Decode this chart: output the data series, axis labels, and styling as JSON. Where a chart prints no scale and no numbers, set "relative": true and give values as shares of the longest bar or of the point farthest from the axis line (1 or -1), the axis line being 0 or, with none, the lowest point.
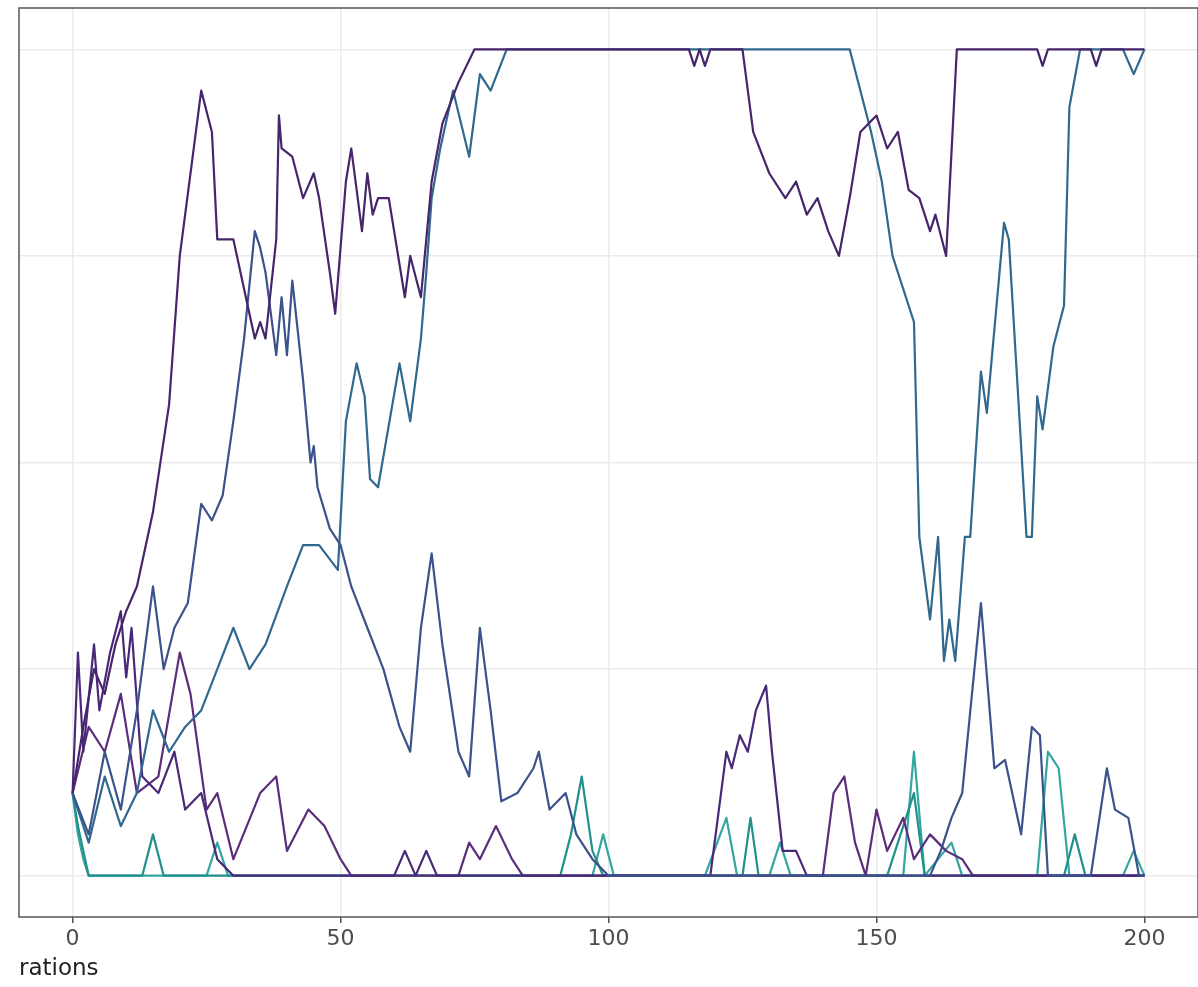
{
  "chart_data": {
    "type": "line",
    "xlabel": "rations",
    "relative": true,
    "xlim": [
      -10,
      210
    ],
    "xticks": [
      0,
      50,
      100,
      150,
      200
    ],
    "grid": true,
    "tick_labels": "x",
    "legend": false,
    "marker": "none",
    "line_style": "solid",
    "series": [
      {
        "color": "#46256b",
        "x": [
          0,
          2,
          4,
          6,
          8,
          10,
          12,
          15,
          18,
          20,
          22,
          24,
          26,
          27,
          30,
          31,
          34,
          35,
          36,
          38,
          38.5,
          39,
          41,
          43,
          45,
          46,
          48,
          49,
          51,
          52,
          54,
          55,
          56,
          57,
          59,
          62,
          63,
          65,
          67,
          69,
          72,
          75,
          115,
          116,
          117,
          118,
          119,
          125,
          127,
          130,
          133,
          135,
          137,
          139,
          141,
          143,
          145,
          147,
          150,
          152,
          154,
          156,
          158,
          160,
          161,
          163,
          165,
          175,
          180,
          181,
          182,
          190,
          191,
          192,
          200
        ],
        "values": [
          0.1,
          0.18,
          0.25,
          0.22,
          0.28,
          0.32,
          0.35,
          0.44,
          0.57,
          0.75,
          0.85,
          0.95,
          0.9,
          0.77,
          0.77,
          0.74,
          0.65,
          0.67,
          0.65,
          0.77,
          0.92,
          0.88,
          0.87,
          0.82,
          0.85,
          0.82,
          0.73,
          0.68,
          0.84,
          0.88,
          0.78,
          0.85,
          0.8,
          0.82,
          0.82,
          0.7,
          0.75,
          0.7,
          0.84,
          0.91,
          0.96,
          1,
          1,
          0.98,
          1,
          0.98,
          1,
          1,
          0.9,
          0.85,
          0.82,
          0.84,
          0.8,
          0.82,
          0.78,
          0.75,
          0.82,
          0.9,
          0.92,
          0.88,
          0.9,
          0.83,
          0.82,
          0.78,
          0.8,
          0.75,
          1,
          1,
          1,
          0.98,
          1,
          1,
          0.98,
          1,
          1
        ]
      },
      {
        "color": "#3b528b",
        "x": [
          0,
          3,
          6,
          9,
          12,
          15,
          17,
          19,
          21.5,
          24,
          26,
          28,
          30,
          32,
          34,
          35,
          36,
          38,
          39,
          40,
          41,
          43,
          44.4,
          45,
          45.7,
          48,
          50,
          52,
          55,
          58,
          61,
          63,
          65,
          67,
          69,
          72,
          74,
          76,
          78,
          80,
          83,
          86,
          87,
          89,
          92,
          94,
          97,
          100,
          160,
          162,
          164,
          166,
          169.5,
          172,
          174,
          177,
          179,
          180.5,
          182,
          190,
          193,
          194.5,
          197,
          199,
          200
        ],
        "values": [
          0.1,
          0.05,
          0.15,
          0.08,
          0.2,
          0.35,
          0.25,
          0.3,
          0.33,
          0.45,
          0.43,
          0.46,
          0.55,
          0.65,
          0.78,
          0.76,
          0.73,
          0.63,
          0.7,
          0.63,
          0.72,
          0.6,
          0.5,
          0.52,
          0.47,
          0.42,
          0.4,
          0.35,
          0.3,
          0.25,
          0.18,
          0.15,
          0.3,
          0.39,
          0.28,
          0.15,
          0.12,
          0.3,
          0.2,
          0.09,
          0.1,
          0.13,
          0.15,
          0.08,
          0.1,
          0.05,
          0.02,
          0,
          0,
          0.03,
          0.07,
          0.1,
          0.33,
          0.13,
          0.14,
          0.05,
          0.18,
          0.17,
          0,
          0,
          0.13,
          0.08,
          0.07,
          0,
          0
        ]
      },
      {
        "color": "#31688e",
        "x": [
          0,
          3,
          6,
          9,
          12,
          15,
          18,
          21,
          24,
          27,
          30,
          33,
          36,
          40,
          43,
          46,
          49.5,
          51,
          53,
          54.5,
          55.5,
          57,
          61,
          63,
          65,
          66,
          67,
          68.6,
          71,
          74,
          76,
          78,
          81,
          145,
          149,
          151,
          153,
          157,
          158,
          160,
          161.5,
          162.6,
          163.6,
          164.7,
          166.5,
          167.5,
          169.5,
          170.6,
          173.8,
          174.7,
          178,
          179,
          180,
          181,
          183,
          185,
          186,
          188,
          196,
          198,
          200
        ],
        "values": [
          0.1,
          0.04,
          0.12,
          0.06,
          0.1,
          0.2,
          0.15,
          0.18,
          0.2,
          0.25,
          0.3,
          0.25,
          0.28,
          0.35,
          0.4,
          0.4,
          0.37,
          0.55,
          0.62,
          0.58,
          0.48,
          0.47,
          0.62,
          0.55,
          0.65,
          0.73,
          0.82,
          0.88,
          0.95,
          0.87,
          0.97,
          0.95,
          1,
          1,
          0.9,
          0.84,
          0.75,
          0.67,
          0.41,
          0.31,
          0.41,
          0.26,
          0.31,
          0.26,
          0.41,
          0.41,
          0.61,
          0.56,
          0.79,
          0.77,
          0.41,
          0.41,
          0.58,
          0.54,
          0.64,
          0.69,
          0.93,
          1,
          1,
          0.97,
          1
        ]
      },
      {
        "color": "#482878",
        "x": [
          0,
          1,
          2,
          4,
          5,
          7,
          9,
          10,
          11,
          13,
          16,
          19,
          21,
          24,
          27,
          30,
          60,
          62,
          64,
          66,
          68,
          70,
          119,
          122,
          123,
          124.5,
          126,
          127.5,
          129.4,
          130.5,
          132.5,
          135,
          137,
          200
        ],
        "values": [
          0.1,
          0.27,
          0.15,
          0.28,
          0.2,
          0.27,
          0.32,
          0.24,
          0.3,
          0.12,
          0.1,
          0.15,
          0.08,
          0.1,
          0.02,
          0,
          0,
          0.03,
          0,
          0.03,
          0,
          0,
          0,
          0.15,
          0.13,
          0.17,
          0.15,
          0.2,
          0.23,
          0.15,
          0.03,
          0.03,
          0,
          0
        ]
      },
      {
        "color": "#5b2d7a",
        "x": [
          0,
          3,
          6,
          9,
          12,
          16,
          20,
          22,
          25,
          27,
          30,
          35,
          38,
          40,
          44,
          47,
          50,
          52,
          72,
          74,
          76,
          79,
          82,
          84,
          140,
          142,
          144,
          146,
          148,
          150,
          152,
          155,
          157,
          160,
          163,
          166,
          168,
          200
        ],
        "values": [
          0.1,
          0.18,
          0.15,
          0.22,
          0.1,
          0.12,
          0.27,
          0.22,
          0.08,
          0.1,
          0.02,
          0.1,
          0.12,
          0.03,
          0.08,
          0.06,
          0.02,
          0,
          0,
          0.04,
          0.02,
          0.06,
          0.02,
          0,
          0,
          0.1,
          0.12,
          0.04,
          0,
          0.08,
          0.03,
          0.07,
          0.02,
          0.05,
          0.03,
          0.02,
          0,
          0
        ]
      },
      {
        "color": "#21908d",
        "x": [
          0,
          1,
          2,
          3,
          13,
          15,
          17,
          80,
          91,
          93,
          95,
          97,
          99,
          125,
          126.5,
          128,
          152,
          157,
          159,
          185,
          187,
          189,
          200
        ],
        "values": [
          0.1,
          0.06,
          0.03,
          0,
          0,
          0.05,
          0,
          0,
          0,
          0.05,
          0.12,
          0.03,
          0,
          0,
          0.07,
          0,
          0,
          0.1,
          0,
          0,
          0.05,
          0,
          0
        ]
      },
      {
        "color": "#35a5a0",
        "x": [
          0,
          1,
          2,
          3,
          25,
          27,
          29,
          97,
          99,
          101,
          118,
          122,
          124,
          130,
          132,
          134,
          155,
          157,
          159,
          164,
          166,
          180,
          182,
          184,
          186,
          196,
          198,
          200
        ],
        "values": [
          0.1,
          0.05,
          0.02,
          0,
          0,
          0.04,
          0,
          0,
          0.05,
          0,
          0,
          0.07,
          0,
          0,
          0.04,
          0,
          0,
          0.15,
          0,
          0.04,
          0,
          0,
          0.15,
          0.13,
          0,
          0,
          0.03,
          0
        ]
      }
    ]
  }
}
